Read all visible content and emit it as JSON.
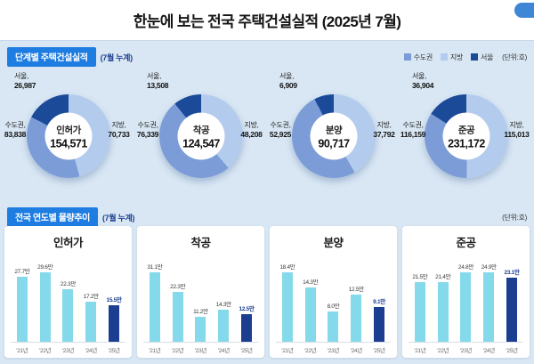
{
  "page": {
    "title": "한눈에 보는 전국 주택건설실적 (2025년 7월)"
  },
  "colors": {
    "background": "#d9e7f4",
    "accent_badge": "#1f7ce0",
    "sudogwon": "#7b9cd6",
    "jibang": "#b3cbec",
    "seoul": "#1b4a99",
    "bar": "#84d9ea",
    "bar_current": "#1c3e91"
  },
  "stage_section": {
    "badge": "단계별 주택건설실적",
    "suffix": "(7월 누계)",
    "unit": "(단위:호)",
    "legend": [
      {
        "label": "수도권",
        "color_key": "sudogwon"
      },
      {
        "label": "지방",
        "color_key": "jibang"
      },
      {
        "label": "서울",
        "color_key": "seoul"
      }
    ]
  },
  "trend_section": {
    "badge": "전국 연도별 물량추이",
    "suffix": "(7월 누계)",
    "unit": "(단위:호)"
  },
  "chart_data": [
    {
      "type": "pie",
      "name": "인허가",
      "total": 154571,
      "total_display": "154,571",
      "seoul": {
        "label": "서울,",
        "value": 26987,
        "display": "26,987"
      },
      "sudogwon": {
        "label": "수도권,",
        "value": 83838,
        "display": "83,838"
      },
      "jibang": {
        "label": "지방,",
        "value": 70733,
        "display": "70,733"
      }
    },
    {
      "type": "pie",
      "name": "착공",
      "total": 124547,
      "total_display": "124,547",
      "seoul": {
        "label": "서울,",
        "value": 13508,
        "display": "13,508"
      },
      "sudogwon": {
        "label": "수도권,",
        "value": 76339,
        "display": "76,339"
      },
      "jibang": {
        "label": "지방,",
        "value": 48208,
        "display": "48,208"
      }
    },
    {
      "type": "pie",
      "name": "분양",
      "total": 90717,
      "total_display": "90,717",
      "seoul": {
        "label": "서울,",
        "value": 6909,
        "display": "6,909"
      },
      "sudogwon": {
        "label": "수도권,",
        "value": 52925,
        "display": "52,925"
      },
      "jibang": {
        "label": "지방,",
        "value": 37792,
        "display": "37,792"
      }
    },
    {
      "type": "pie",
      "name": "준공",
      "total": 231172,
      "total_display": "231,172",
      "seoul": {
        "label": "서울,",
        "value": 36904,
        "display": "36,904"
      },
      "sudogwon": {
        "label": "수도권,",
        "value": 116159,
        "display": "116,159"
      },
      "jibang": {
        "label": "지방,",
        "value": 115013,
        "display": "115,013"
      }
    },
    {
      "type": "bar",
      "title": "인허가",
      "categories": [
        "'21년",
        "'22년",
        "'23년",
        "'24년",
        "'25년"
      ],
      "values": [
        27.7,
        29.6,
        22.3,
        17.2,
        15.5
      ],
      "labels": [
        "27.7만",
        "29.6만",
        "22.3만",
        "17.2만",
        "15.5만"
      ],
      "unit": "만"
    },
    {
      "type": "bar",
      "title": "착공",
      "categories": [
        "'21년",
        "'22년",
        "'23년",
        "'24년",
        "'25년"
      ],
      "values": [
        31.1,
        22.3,
        11.2,
        14.3,
        12.5
      ],
      "labels": [
        "31.1만",
        "22.3만",
        "11.2만",
        "14.3만",
        "12.5만"
      ],
      "unit": "만"
    },
    {
      "type": "bar",
      "title": "분양",
      "categories": [
        "'21년",
        "'22년",
        "'23년",
        "'24년",
        "'25년"
      ],
      "values": [
        18.4,
        14.3,
        8.0,
        12.5,
        9.1
      ],
      "labels": [
        "18.4만",
        "14.3만",
        "8.0만",
        "12.5만",
        "9.1만"
      ],
      "unit": "만"
    },
    {
      "type": "bar",
      "title": "준공",
      "categories": [
        "'21년",
        "'22년",
        "'23년",
        "'24년",
        "'25년"
      ],
      "values": [
        21.5,
        21.4,
        24.8,
        24.9,
        23.1
      ],
      "labels": [
        "21.5만",
        "21.4만",
        "24.8만",
        "24.9만",
        "23.1만"
      ],
      "unit": "만"
    }
  ]
}
